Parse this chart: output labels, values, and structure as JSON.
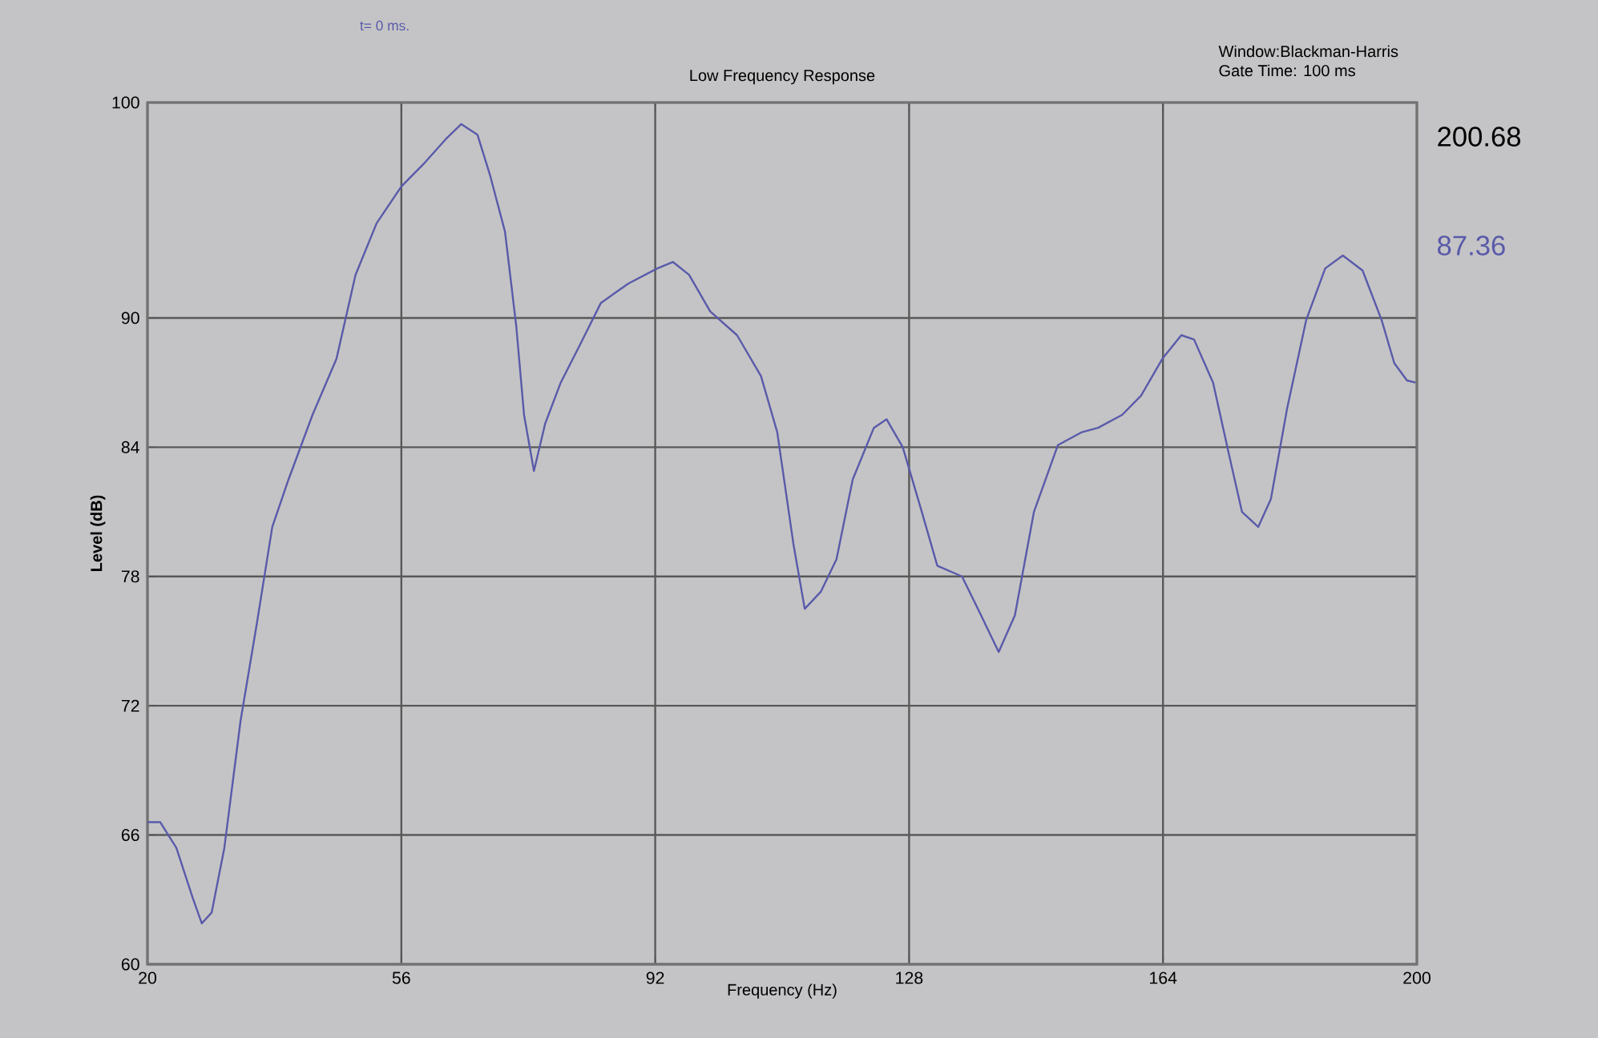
{
  "chart_data": {
    "type": "line",
    "title": "Low Frequency Response",
    "xlabel": "Frequency (Hz)",
    "ylabel": "Level (dB)",
    "annotations": [
      "t= 0 ms.",
      "Window:Blackman-Harris",
      "Gate Time: 100 ms",
      "200.68",
      "87.36"
    ],
    "xlim": [
      20,
      200
    ],
    "xticks": [
      20,
      56,
      92,
      128,
      164,
      200
    ],
    "ylim": [
      60,
      100
    ],
    "yticks": [
      60,
      66,
      72,
      78,
      84,
      90,
      100
    ],
    "grid": true,
    "marker": "none",
    "line_style": "solid",
    "series": [
      {
        "color": "#5a5aaa",
        "x": [
          20,
          21.8,
          24.1,
          26.4,
          27.7,
          29.1,
          30.9,
          33.2,
          35.5,
          37.7,
          40,
          43.4,
          46.8,
          49.5,
          52.5,
          56,
          59.3,
          62.3,
          64.5,
          66.8,
          68.6,
          70.7,
          72.3,
          73.4,
          74.8,
          76.4,
          78.6,
          81.4,
          84.3,
          88.2,
          92.3,
          94.5,
          96.8,
          99.8,
          103.6,
          107,
          109.3,
          111.6,
          113.2,
          115.5,
          117.7,
          120,
          123,
          124.8,
          127.1,
          129.8,
          132,
          135.5,
          138.2,
          140.7,
          143,
          145.7,
          149.1,
          152.5,
          154.8,
          158.2,
          160.9,
          163.9,
          166.6,
          168.4,
          171.1,
          173.4,
          175.2,
          177.5,
          179.3,
          181.6,
          184.3,
          187,
          189.5,
          192.3,
          195,
          196.8,
          198.6,
          199.8
        ],
        "values": [
          66.6,
          66.6,
          65.4,
          63.1,
          61.9,
          62.4,
          65.4,
          71.3,
          75.8,
          80.3,
          82.5,
          85.5,
          88.1,
          92.0,
          94.4,
          96.1,
          97.2,
          98.3,
          99.0,
          98.5,
          96.6,
          94.0,
          89.6,
          85.5,
          82.9,
          85.1,
          87.0,
          88.8,
          90.7,
          91.6,
          92.3,
          92.6,
          92.0,
          90.3,
          89.2,
          87.3,
          84.7,
          79.5,
          76.5,
          77.3,
          78.8,
          82.5,
          84.9,
          85.3,
          84.0,
          81.0,
          78.5,
          78.0,
          76.2,
          74.5,
          76.2,
          81.0,
          84.1,
          84.7,
          84.9,
          85.5,
          86.4,
          88.1,
          89.2,
          89.0,
          87.0,
          83.6,
          81.0,
          80.3,
          81.6,
          85.8,
          89.9,
          92.3,
          92.9,
          92.2,
          89.9,
          87.9,
          87.1,
          87.0
        ]
      }
    ]
  }
}
